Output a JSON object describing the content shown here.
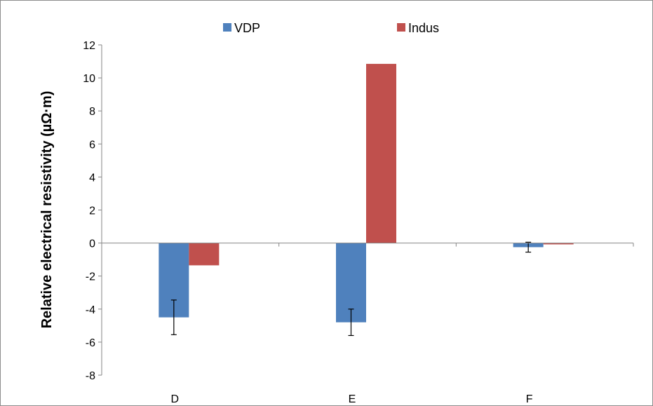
{
  "chart_data": {
    "type": "bar",
    "categories": [
      "D",
      "E",
      "F"
    ],
    "series": [
      {
        "name": "VDP",
        "color": "#4f81bd",
        "values": [
          -4.5,
          -4.8,
          -0.25
        ],
        "error": [
          1.05,
          0.8,
          0.3
        ]
      },
      {
        "name": "Indus",
        "color": "#c0504d",
        "values": [
          -1.35,
          10.85,
          -0.08
        ]
      }
    ],
    "title": "",
    "xlabel": "",
    "ylabel": "Relative electrical resistivity (µΩ·m)",
    "ylim": [
      -8,
      12
    ],
    "yticks": [
      12,
      10,
      8,
      6,
      4,
      2,
      0,
      -2,
      -4,
      -6,
      -8
    ],
    "ytick_labels": [
      "12",
      "10",
      "8",
      "6",
      "4",
      "2",
      "0",
      "-2",
      "-4",
      "-6",
      "-8"
    ],
    "legend": {
      "position": "top"
    },
    "grid": false
  }
}
